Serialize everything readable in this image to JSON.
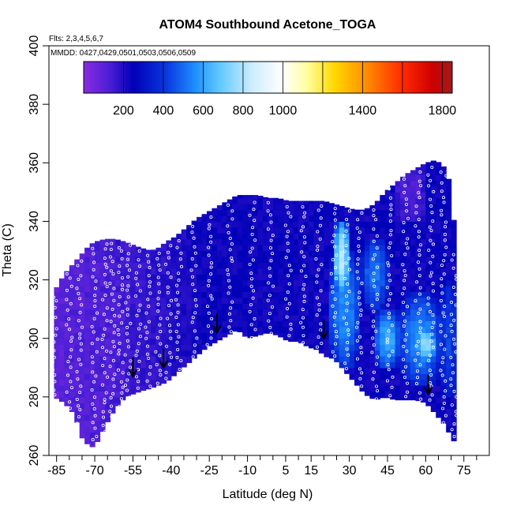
{
  "chart_data": {
    "type": "heatmap",
    "title": "ATOM4 Southbound Acetone_TOGA",
    "flights_note": "Flts: 2,3,4,5,6,7",
    "dates_note": "MMDD: 0427,0429,0501,0503,0506,0509",
    "xlabel": "Latitude (deg N)",
    "ylabel": "Theta (C)",
    "xlim": [
      -88,
      85
    ],
    "ylim": [
      260,
      400
    ],
    "x_ticks": [
      -85,
      -70,
      -55,
      -40,
      -25,
      -10,
      5,
      15,
      30,
      45,
      60,
      75
    ],
    "x_minor_ticks": [
      -80,
      -75,
      -65,
      -60,
      -50,
      -45,
      -35,
      -30,
      -20,
      -15,
      -5,
      0,
      10,
      20,
      25,
      35,
      40,
      50,
      55,
      65,
      70,
      80
    ],
    "y_ticks": [
      260,
      280,
      300,
      320,
      340,
      360,
      380,
      400
    ],
    "colorbar": {
      "range": [
        0,
        1850
      ],
      "tick_values": [
        200,
        400,
        600,
        800,
        1000,
        1400,
        1800
      ],
      "boundaries": [
        200,
        400,
        600,
        800,
        1000,
        1200,
        1400,
        1600,
        1800
      ],
      "color_stops": [
        {
          "v": 0,
          "c": "#8a2be2"
        },
        {
          "v": 130,
          "c": "#4b1fd6"
        },
        {
          "v": 250,
          "c": "#0000b8"
        },
        {
          "v": 420,
          "c": "#0a3ae0"
        },
        {
          "v": 560,
          "c": "#1e8fff"
        },
        {
          "v": 680,
          "c": "#5fc8ff"
        },
        {
          "v": 850,
          "c": "#cfeeff"
        },
        {
          "v": 1000,
          "c": "#ffffff"
        },
        {
          "v": 1120,
          "c": "#ffffa0"
        },
        {
          "v": 1260,
          "c": "#ffd800"
        },
        {
          "v": 1420,
          "c": "#ff8c00"
        },
        {
          "v": 1600,
          "c": "#ff2a00"
        },
        {
          "v": 1750,
          "c": "#d00000"
        },
        {
          "v": 1850,
          "c": "#a11a1a"
        }
      ]
    },
    "coverage": {
      "lat": [
        -86,
        -82,
        -78,
        -75,
        -72,
        -70,
        -66,
        -62,
        -58,
        -55,
        -52,
        -48,
        -45,
        -42,
        -38,
        -34,
        -30,
        -26,
        -22,
        -18,
        -14,
        -10,
        -6,
        -2,
        2,
        6,
        10,
        14,
        18,
        20,
        24,
        28,
        32,
        36,
        40,
        44,
        48,
        52,
        56,
        60,
        64,
        68,
        70,
        72
      ],
      "bottom": [
        280,
        278,
        274,
        266,
        263,
        263,
        270,
        276,
        280,
        281,
        282,
        283,
        284,
        285,
        288,
        291,
        294,
        297,
        299,
        301,
        303,
        300,
        301,
        302,
        301,
        299,
        299,
        297,
        296,
        294,
        293,
        289,
        285,
        281,
        279,
        280,
        279,
        279,
        279,
        278,
        274,
        270,
        266,
        264
      ],
      "top": [
        316,
        322,
        326,
        329,
        332,
        333,
        334,
        334,
        333,
        332,
        331,
        330,
        331,
        333,
        335,
        338,
        341,
        343,
        345,
        347,
        349,
        349,
        349,
        348,
        348,
        347,
        347,
        347,
        347,
        347,
        346,
        345,
        344,
        344,
        346,
        350,
        353,
        356,
        358,
        360,
        361,
        358,
        351,
        330
      ]
    },
    "enhanced_regions": [
      {
        "lat": [
          24,
          30
        ],
        "theta": [
          315,
          340
        ],
        "value": 820
      },
      {
        "lat": [
          22,
          34
        ],
        "theta": [
          290,
          330
        ],
        "value": 560
      },
      {
        "lat": [
          35,
          45
        ],
        "theta": [
          310,
          334
        ],
        "value": 520
      },
      {
        "lat": [
          40,
          50
        ],
        "theta": [
          290,
          310
        ],
        "value": 620
      },
      {
        "lat": [
          50,
          66
        ],
        "theta": [
          285,
          315
        ],
        "value": 560
      },
      {
        "lat": [
          56,
          64
        ],
        "theta": [
          292,
          304
        ],
        "value": 760
      },
      {
        "lat": [
          66,
          72
        ],
        "theta": [
          280,
          320
        ],
        "value": 430
      },
      {
        "lat": [
          -86,
          -58
        ],
        "theta": [
          264,
          332
        ],
        "value": 120
      },
      {
        "lat": [
          48,
          60
        ],
        "theta": [
          340,
          360
        ],
        "value": 120
      }
    ],
    "descent_arrows": [
      {
        "lat": -55,
        "theta": 287
      },
      {
        "lat": -43,
        "theta": 290
      },
      {
        "lat": -22,
        "theta": 302
      },
      {
        "lat": 20,
        "theta": 300
      },
      {
        "lat": 61,
        "theta": 281
      }
    ],
    "sample_tracks": [
      {
        "lat": -70,
        "theta": [
          262,
          332
        ]
      },
      {
        "lat": -66,
        "theta": [
          268,
          334
        ]
      },
      {
        "lat": -63,
        "theta": [
          272,
          334
        ]
      },
      {
        "lat": -60,
        "theta": [
          276,
          333
        ]
      },
      {
        "lat": -57,
        "theta": [
          279,
          333
        ]
      },
      {
        "lat": -53,
        "theta": [
          282,
          331
        ]
      },
      {
        "lat": -49,
        "theta": [
          283,
          330
        ]
      },
      {
        "lat": -45,
        "theta": [
          284,
          331
        ]
      },
      {
        "lat": -41,
        "theta": [
          286,
          333
        ]
      },
      {
        "lat": -37,
        "theta": [
          289,
          335
        ]
      },
      {
        "lat": -31,
        "theta": [
          293,
          340
        ]
      },
      {
        "lat": -25,
        "theta": [
          297,
          343
        ]
      },
      {
        "lat": -17,
        "theta": [
          301,
          347
        ]
      },
      {
        "lat": -8,
        "theta": [
          300,
          348
        ]
      },
      {
        "lat": -1,
        "theta": [
          301,
          348
        ]
      },
      {
        "lat": 6,
        "theta": [
          300,
          347
        ]
      },
      {
        "lat": 12,
        "theta": [
          298,
          347
        ]
      },
      {
        "lat": 18,
        "theta": [
          296,
          347
        ]
      },
      {
        "lat": 24,
        "theta": [
          293,
          346
        ]
      },
      {
        "lat": 29,
        "theta": [
          289,
          345
        ]
      },
      {
        "lat": 34,
        "theta": [
          283,
          344
        ]
      },
      {
        "lat": 40,
        "theta": [
          279,
          346
        ]
      },
      {
        "lat": 46,
        "theta": [
          280,
          352
        ]
      },
      {
        "lat": 52,
        "theta": [
          279,
          356
        ]
      },
      {
        "lat": 57,
        "theta": [
          279,
          358
        ]
      },
      {
        "lat": 62,
        "theta": [
          278,
          360
        ]
      },
      {
        "lat": 67,
        "theta": [
          271,
          359
        ]
      },
      {
        "lat": 71,
        "theta": [
          266,
          330
        ]
      },
      {
        "lat": -86,
        "theta": [
          280,
          316
        ]
      },
      {
        "lat": -80,
        "theta": [
          276,
          324
        ]
      },
      {
        "lat": -76,
        "theta": [
          268,
          328
        ]
      }
    ]
  }
}
